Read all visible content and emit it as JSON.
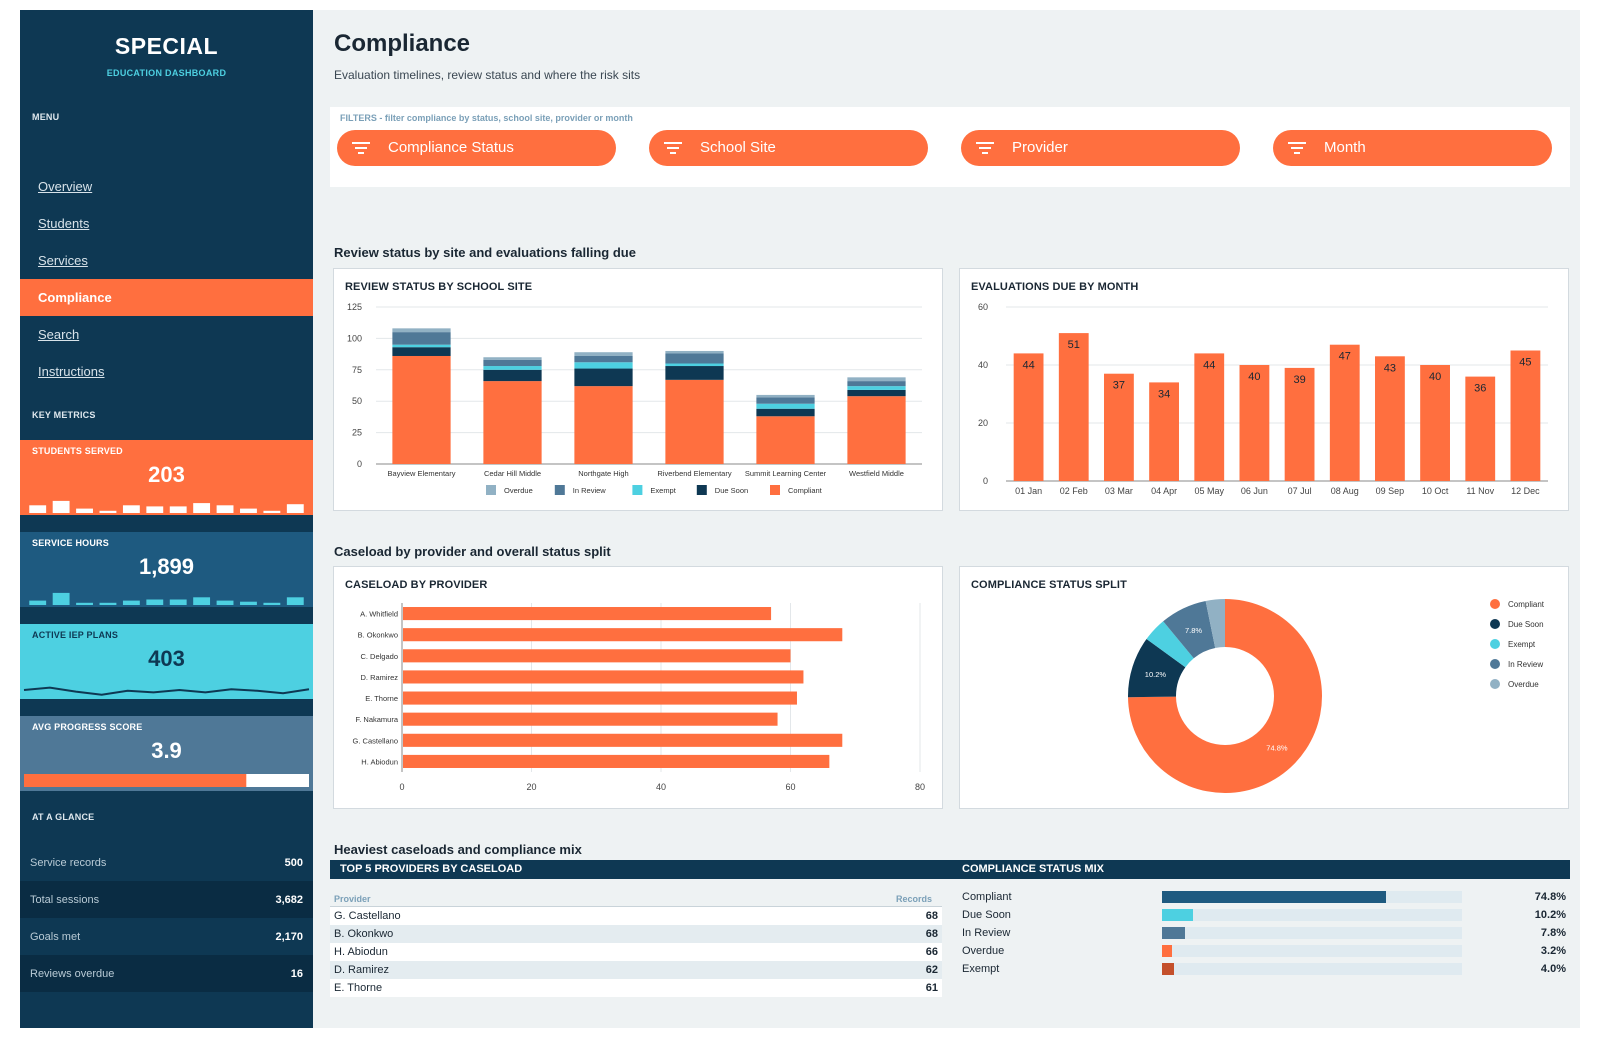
{
  "sidebar": {
    "brand": "SPECIAL",
    "brand_sub": "EDUCATION DASHBOARD",
    "menu_heading": "MENU",
    "nav": [
      {
        "label": "Overview"
      },
      {
        "label": "Students"
      },
      {
        "label": "Services"
      },
      {
        "label": "Compliance"
      },
      {
        "label": "Search"
      },
      {
        "label": "Instructions"
      }
    ],
    "active_nav": "Compliance",
    "key_metrics_heading": "KEY METRICS",
    "metrics": [
      {
        "label": "STUDENTS SERVED",
        "value": "203",
        "sparkline": [
          0.35,
          0.55,
          0.2,
          0.1,
          0.35,
          0.3,
          0.3,
          0.45,
          0.35,
          0.2,
          0.1,
          0.4
        ]
      },
      {
        "label": "SERVICE HOURS",
        "value": "1,899",
        "sparkline": [
          0.2,
          0.55,
          0.1,
          0.1,
          0.2,
          0.25,
          0.25,
          0.35,
          0.2,
          0.15,
          0.1,
          0.35
        ]
      },
      {
        "label": "ACTIVE IEP PLANS",
        "value": "403",
        "sparkline": [
          0.5,
          0.65,
          0.4,
          0.2,
          0.45,
          0.35,
          0.5,
          0.35,
          0.55,
          0.45,
          0.3,
          0.55
        ]
      },
      {
        "label": "AVG PROGRESS SCORE",
        "value": "3.9",
        "progress": 0.78
      }
    ],
    "glance_heading": "AT A GLANCE",
    "glance": [
      {
        "label": "Service records",
        "value": "500"
      },
      {
        "label": "Total sessions",
        "value": "3,682"
      },
      {
        "label": "Goals met",
        "value": "2,170"
      },
      {
        "label": "Reviews overdue",
        "value": "16"
      }
    ]
  },
  "page": {
    "title": "Compliance",
    "subtitle": "Evaluation timelines, review status and where the risk sits"
  },
  "filters": {
    "caption": "FILTERS  -  filter compliance by status, school site, provider or month",
    "items": [
      {
        "label": "Compliance Status"
      },
      {
        "label": "School Site"
      },
      {
        "label": "Provider"
      },
      {
        "label": "Month"
      }
    ]
  },
  "sections": {
    "review": "Review status by site and evaluations falling due",
    "caseload": "Caseload by provider and overall status split",
    "heaviest": "Heaviest caseloads and compliance mix"
  },
  "colors": {
    "compliant": "#ff6f3f",
    "due_soon": "#0e3853",
    "exempt": "#4dd0e1",
    "in_review": "#4f7897",
    "overdue": "#91b1c4"
  },
  "chart_data": [
    {
      "type": "bar",
      "stacked": true,
      "title": "REVIEW STATUS BY SCHOOL SITE",
      "categories": [
        "Bayview Elementary",
        "Cedar Hill Middle",
        "Northgate High",
        "Riverbend Elementary",
        "Summit Learning Center",
        "Westfield Middle"
      ],
      "series": [
        {
          "name": "Compliant",
          "color": "#ff6f3f",
          "values": [
            86,
            66,
            62,
            67,
            38,
            54
          ]
        },
        {
          "name": "Due Soon",
          "color": "#0e3853",
          "values": [
            7,
            9,
            14,
            11,
            6,
            5
          ]
        },
        {
          "name": "Exempt",
          "color": "#4dd0e1",
          "values": [
            2,
            3,
            5,
            2,
            4,
            3
          ]
        },
        {
          "name": "In Review",
          "color": "#4f7897",
          "values": [
            10,
            5,
            5,
            8,
            5,
            4
          ]
        },
        {
          "name": "Overdue",
          "color": "#91b1c4",
          "values": [
            3,
            2,
            3,
            2,
            2,
            3
          ]
        }
      ],
      "legend_order": [
        "Overdue",
        "In Review",
        "Exempt",
        "Due Soon",
        "Compliant"
      ],
      "ylim": [
        0,
        125
      ],
      "yticks": [
        0,
        25,
        50,
        75,
        100,
        125
      ],
      "grid": true,
      "legend": "bottom"
    },
    {
      "type": "bar",
      "title": "EVALUATIONS DUE BY MONTH",
      "categories": [
        "01 Jan",
        "02 Feb",
        "03 Mar",
        "04 Apr",
        "05 May",
        "06 Jun",
        "07 Jul",
        "08 Aug",
        "09 Sep",
        "10 Oct",
        "11 Nov",
        "12 Dec"
      ],
      "values": [
        44,
        51,
        37,
        34,
        44,
        40,
        39,
        47,
        43,
        40,
        36,
        45
      ],
      "ylim": [
        0,
        60
      ],
      "yticks": [
        0,
        20,
        40,
        60
      ],
      "grid": true,
      "data_labels": true
    },
    {
      "type": "bar",
      "orientation": "horizontal",
      "title": "CASELOAD BY PROVIDER",
      "categories": [
        "A. Whitfield",
        "B. Okonkwo",
        "C. Delgado",
        "D. Ramirez",
        "E. Thorne",
        "F. Nakamura",
        "G. Castellano",
        "H. Abiodun"
      ],
      "values": [
        57,
        68,
        60,
        62,
        61,
        58,
        68,
        66
      ],
      "xlim": [
        0,
        80
      ],
      "xticks": [
        0,
        20,
        40,
        60,
        80
      ],
      "grid": true
    },
    {
      "type": "pie",
      "donut": true,
      "title": "COMPLIANCE STATUS SPLIT",
      "slices": [
        {
          "name": "Compliant",
          "value": 74.8,
          "color": "#ff6f3f",
          "label": "74.8%"
        },
        {
          "name": "Due Soon",
          "value": 10.2,
          "color": "#0e3853",
          "label": "10.2%"
        },
        {
          "name": "Exempt",
          "value": 4.0,
          "color": "#4dd0e1",
          "label": ""
        },
        {
          "name": "In Review",
          "value": 7.8,
          "color": "#4f7897",
          "label": "7.8%"
        },
        {
          "name": "Overdue",
          "value": 3.2,
          "color": "#91b1c4",
          "label": ""
        }
      ],
      "legend": "right"
    }
  ],
  "top_providers": {
    "title": "TOP 5 PROVIDERS BY CASELOAD",
    "col_provider": "Provider",
    "col_records": "Records",
    "rows": [
      {
        "name": "G. Castellano",
        "records": "68"
      },
      {
        "name": "B. Okonkwo",
        "records": "68"
      },
      {
        "name": "H. Abiodun",
        "records": "66"
      },
      {
        "name": "D. Ramirez",
        "records": "62"
      },
      {
        "name": "E. Thorne",
        "records": "61"
      }
    ]
  },
  "status_mix": {
    "title": "COMPLIANCE STATUS MIX",
    "rows": [
      {
        "name": "Compliant",
        "pct": "74.8%",
        "fraction": 0.748,
        "color": "#1e5a80"
      },
      {
        "name": "Due Soon",
        "pct": "10.2%",
        "fraction": 0.102,
        "color": "#4dd0e1"
      },
      {
        "name": "In Review",
        "pct": "7.8%",
        "fraction": 0.078,
        "color": "#4f7897"
      },
      {
        "name": "Overdue",
        "pct": "3.2%",
        "fraction": 0.032,
        "color": "#ff6f3f"
      },
      {
        "name": "Exempt",
        "pct": "4.0%",
        "fraction": 0.04,
        "color": "#c4502b"
      }
    ]
  }
}
